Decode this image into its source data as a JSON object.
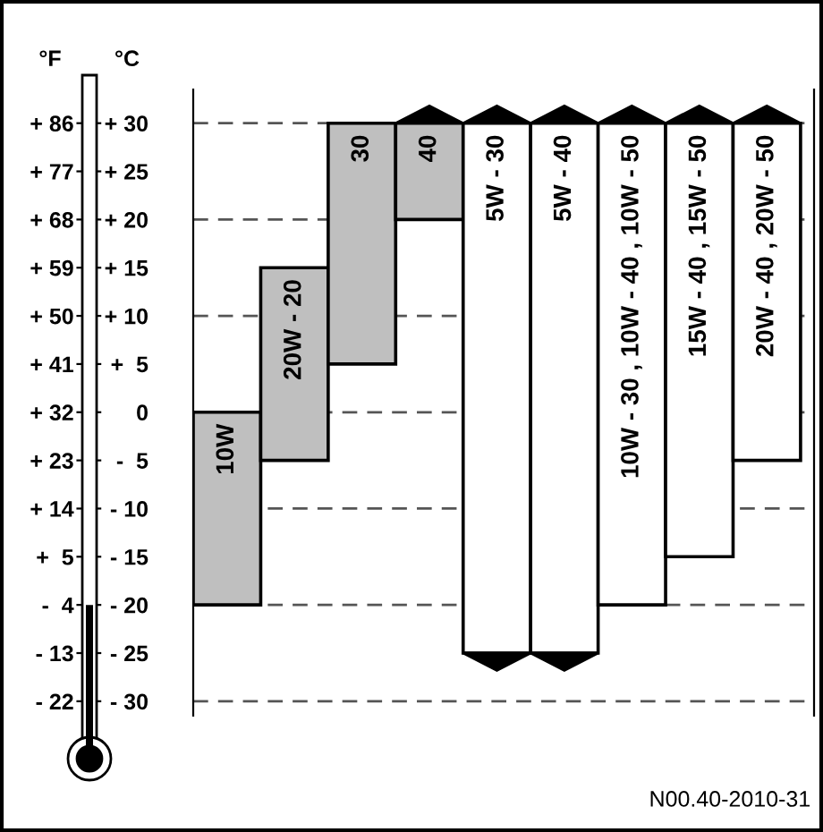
{
  "chart_data": {
    "type": "bar",
    "categories": [
      "10W",
      "20W - 20",
      "30",
      "40",
      "5W - 30",
      "5W - 40",
      "10W - 30 , 10W - 40 , 10W - 50",
      "15W - 40 , 15W - 50",
      "20W - 40 , 20W - 50"
    ],
    "base": [
      -20,
      -5,
      5,
      20,
      -25,
      -25,
      -20,
      -15,
      -5
    ],
    "values": [
      20,
      20,
      25,
      10,
      55,
      55,
      50,
      45,
      35
    ],
    "colors": [
      "#bfbfbf",
      "#bfbfbf",
      "#bfbfbf",
      "#bfbfbf",
      "#ffffff",
      "#ffffff",
      "#ffffff",
      "#ffffff",
      "#ffffff"
    ],
    "ylabel": "°C",
    "y2label": "°F",
    "ylim": [
      -31.5,
      33.5
    ],
    "yticks": [
      {
        "value": 30,
        "label": "+ 30"
      },
      {
        "value": 25,
        "label": "+ 25"
      },
      {
        "value": 20,
        "label": "+ 20"
      },
      {
        "value": 15,
        "label": "+ 15"
      },
      {
        "value": 10,
        "label": "+ 10"
      },
      {
        "value": 5,
        "label": "+  5"
      },
      {
        "value": 0,
        "label": "0"
      },
      {
        "value": -5,
        "label": "-  5"
      },
      {
        "value": -10,
        "label": "- 10"
      },
      {
        "value": -15,
        "label": "- 15"
      },
      {
        "value": -20,
        "label": "- 20"
      },
      {
        "value": -25,
        "label": "- 25"
      },
      {
        "value": -30,
        "label": "- 30"
      }
    ],
    "y2lim": [
      -24.7,
      92.3
    ],
    "y2ticks": [
      {
        "value": 86,
        "label": "+ 86"
      },
      {
        "value": 77,
        "label": "+ 77"
      },
      {
        "value": 68,
        "label": "+ 68"
      },
      {
        "value": 59,
        "label": "+ 59"
      },
      {
        "value": 50,
        "label": "+ 50"
      },
      {
        "value": 41,
        "label": "+ 41"
      },
      {
        "value": 32,
        "label": "+ 32"
      },
      {
        "value": 23,
        "label": "+ 23"
      },
      {
        "value": 14,
        "label": "+ 14"
      },
      {
        "value": 5,
        "label": "+  5"
      },
      {
        "value": -4,
        "label": "-  4"
      },
      {
        "value": -13,
        "label": "- 13"
      },
      {
        "value": -22,
        "label": "- 22"
      }
    ],
    "ref_lines": [
      {
        "axis": "y",
        "value": 30,
        "line_style": "dashed",
        "color": "#555555"
      },
      {
        "axis": "y",
        "value": 20,
        "line_style": "dashed",
        "color": "#555555"
      },
      {
        "axis": "y",
        "value": 10,
        "line_style": "dashed",
        "color": "#555555"
      },
      {
        "axis": "y",
        "value": 0,
        "line_style": "dashed",
        "color": "#555555"
      },
      {
        "axis": "y",
        "value": -10,
        "line_style": "dashed",
        "color": "#555555"
      },
      {
        "axis": "y",
        "value": -20,
        "line_style": "dashed",
        "color": "#555555"
      },
      {
        "axis": "y",
        "value": -30,
        "line_style": "dashed",
        "color": "#555555"
      }
    ],
    "annotations": [
      "N00.40-2010-31"
    ],
    "grid": false,
    "legend": false
  }
}
